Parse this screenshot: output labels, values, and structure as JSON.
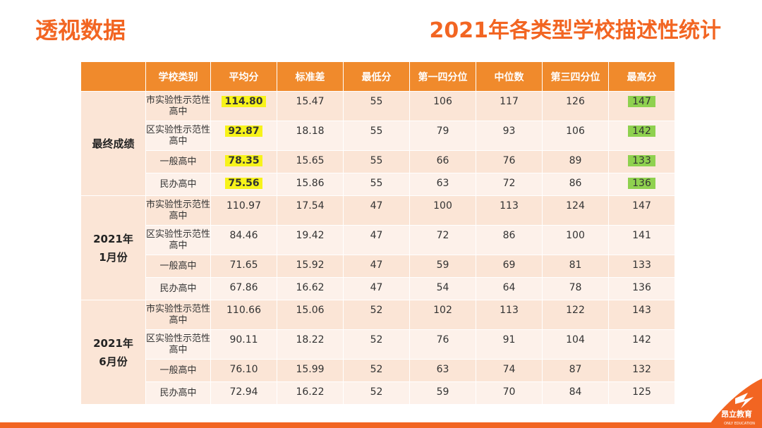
{
  "header": {
    "left_title": "透视数据",
    "right_title": "2021年各类型学校描述性统计"
  },
  "table": {
    "columns": [
      "学校类别",
      "平均分",
      "标准差",
      "最低分",
      "第一四分位",
      "中位数",
      "第三四分位",
      "最高分"
    ],
    "groups": [
      {
        "label": "最终成绩",
        "rows": [
          {
            "school": "市实验性示范性高中",
            "mean": "114.80",
            "sd": "15.47",
            "min": "55",
            "q1": "106",
            "median": "117",
            "q3": "126",
            "max": "147"
          },
          {
            "school": "区实验性示范性高中",
            "mean": "92.87",
            "sd": "18.18",
            "min": "55",
            "q1": "79",
            "median": "93",
            "q3": "106",
            "max": "142"
          },
          {
            "school": "一般高中",
            "mean": "78.35",
            "sd": "15.65",
            "min": "55",
            "q1": "66",
            "median": "76",
            "q3": "89",
            "max": "133"
          },
          {
            "school": "民办高中",
            "mean": "75.56",
            "sd": "15.86",
            "min": "55",
            "q1": "63",
            "median": "72",
            "q3": "86",
            "max": "136"
          }
        ]
      },
      {
        "label_line1": "2021年",
        "label_line2": "1月份",
        "rows": [
          {
            "school": "市实验性示范性高中",
            "mean": "110.97",
            "sd": "17.54",
            "min": "47",
            "q1": "100",
            "median": "113",
            "q3": "124",
            "max": "147"
          },
          {
            "school": "区实验性示范性高中",
            "mean": "84.46",
            "sd": "19.42",
            "min": "47",
            "q1": "72",
            "median": "86",
            "q3": "100",
            "max": "141"
          },
          {
            "school": "一般高中",
            "mean": "71.65",
            "sd": "15.92",
            "min": "47",
            "q1": "59",
            "median": "69",
            "q3": "81",
            "max": "133"
          },
          {
            "school": "民办高中",
            "mean": "67.86",
            "sd": "16.62",
            "min": "47",
            "q1": "54",
            "median": "64",
            "q3": "78",
            "max": "136"
          }
        ]
      },
      {
        "label_line1": "2021年",
        "label_line2": "6月份",
        "rows": [
          {
            "school": "市实验性示范性高中",
            "mean": "110.66",
            "sd": "15.06",
            "min": "52",
            "q1": "102",
            "median": "113",
            "q3": "122",
            "max": "143"
          },
          {
            "school": "区实验性示范性高中",
            "mean": "90.11",
            "sd": "18.22",
            "min": "52",
            "q1": "76",
            "median": "91",
            "q3": "104",
            "max": "142"
          },
          {
            "school": "一般高中",
            "mean": "76.10",
            "sd": "15.99",
            "min": "52",
            "q1": "63",
            "median": "74",
            "q3": "87",
            "max": "132"
          },
          {
            "school": "民办高中",
            "mean": "72.94",
            "sd": "16.22",
            "min": "52",
            "q1": "59",
            "median": "70",
            "q3": "84",
            "max": "125"
          }
        ]
      }
    ]
  },
  "logo": {
    "name": "昂立教育",
    "subtitle": "ONLY EDUCATION"
  },
  "colors": {
    "accent": "#f26522",
    "header_bg": "#f08a2c",
    "highlight_yellow": "#f7f31a",
    "highlight_green": "#8fd14f"
  }
}
